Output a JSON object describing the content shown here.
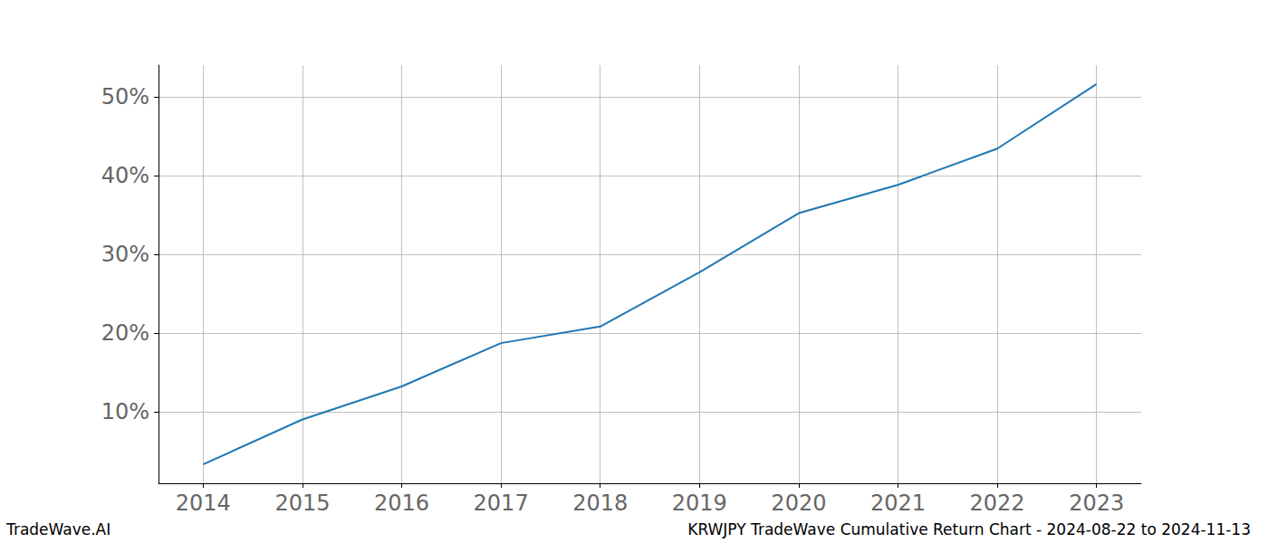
{
  "chart_data": {
    "type": "line",
    "title": "KRWJPY TradeWave Cumulative Return Chart - 2024-08-22 to 2024-11-13",
    "annotations": [
      "TradeWave.AI"
    ],
    "x": [
      2014,
      2015,
      2016,
      2017,
      2018,
      2019,
      2020,
      2021,
      2022,
      2023
    ],
    "values": [
      3.3,
      9.0,
      13.2,
      18.7,
      20.8,
      27.7,
      35.2,
      38.8,
      43.4,
      51.6
    ],
    "color": "#1f77b4",
    "xlim": [
      2013.55,
      2023.45
    ],
    "xticks": [
      2014,
      2015,
      2016,
      2017,
      2018,
      2019,
      2020,
      2021,
      2022,
      2023
    ],
    "ylim": [
      0.9,
      54.0
    ],
    "yticks": [
      {
        "value": 10,
        "label": "10%"
      },
      {
        "value": 20,
        "label": "20%"
      },
      {
        "value": 30,
        "label": "30%"
      },
      {
        "value": 40,
        "label": "40%"
      },
      {
        "value": 50,
        "label": "50%"
      }
    ],
    "grid": true
  }
}
